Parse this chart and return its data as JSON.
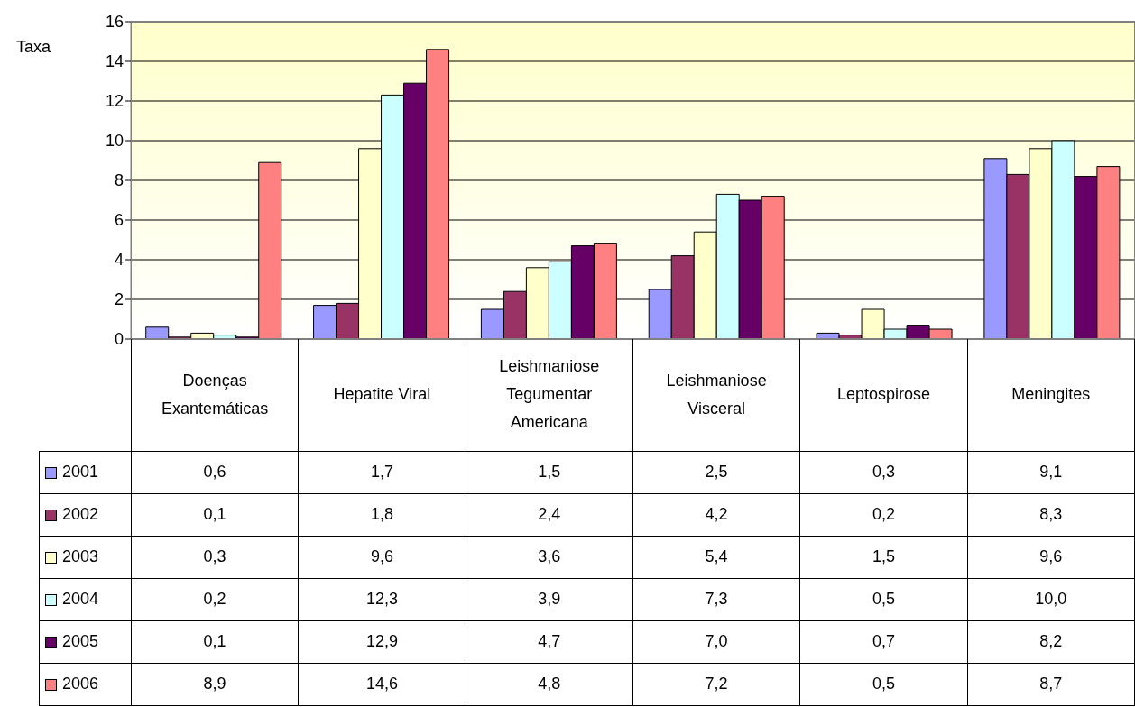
{
  "chart_data": {
    "type": "bar",
    "ylabel": "Taxa",
    "categories": [
      "Doenças Exantemáticas",
      "Hepatite Viral",
      "Leishmaniose Tegumentar Americana",
      "Leishmaniose Visceral",
      "Leptospirose",
      "Meningites"
    ],
    "series": [
      {
        "name": "2001",
        "color": "#9999ff",
        "values": [
          0.6,
          1.7,
          1.5,
          2.5,
          0.3,
          9.1
        ],
        "value_labels": [
          "0,6",
          "1,7",
          "1,5",
          "2,5",
          "0,3",
          "9,1"
        ]
      },
      {
        "name": "2002",
        "color": "#993366",
        "values": [
          0.1,
          1.8,
          2.4,
          4.2,
          0.2,
          8.3
        ],
        "value_labels": [
          "0,1",
          "1,8",
          "2,4",
          "4,2",
          "0,2",
          "8,3"
        ]
      },
      {
        "name": "2003",
        "color": "#ffffcc",
        "values": [
          0.3,
          9.6,
          3.6,
          5.4,
          1.5,
          9.6
        ],
        "value_labels": [
          "0,3",
          "9,6",
          "3,6",
          "5,4",
          "1,5",
          "9,6"
        ]
      },
      {
        "name": "2004",
        "color": "#ccffff",
        "values": [
          0.2,
          12.3,
          3.9,
          7.3,
          0.5,
          10.0
        ],
        "value_labels": [
          "0,2",
          "12,3",
          "3,9",
          "7,3",
          "0,5",
          "10,0"
        ]
      },
      {
        "name": "2005",
        "color": "#660066",
        "values": [
          0.1,
          12.9,
          4.7,
          7.0,
          0.7,
          8.2
        ],
        "value_labels": [
          "0,1",
          "12,9",
          "4,7",
          "7,0",
          "0,7",
          "8,2"
        ]
      },
      {
        "name": "2006",
        "color": "#ff8080",
        "values": [
          8.9,
          14.6,
          4.8,
          7.2,
          0.5,
          8.7
        ],
        "value_labels": [
          "8,9",
          "14,6",
          "4,8",
          "7,2",
          "0,5",
          "8,7"
        ]
      }
    ],
    "ylim": [
      0,
      16
    ],
    "yticks": [
      0,
      2,
      4,
      6,
      8,
      10,
      12,
      14,
      16
    ],
    "grid": "y",
    "legend": "bottom"
  }
}
